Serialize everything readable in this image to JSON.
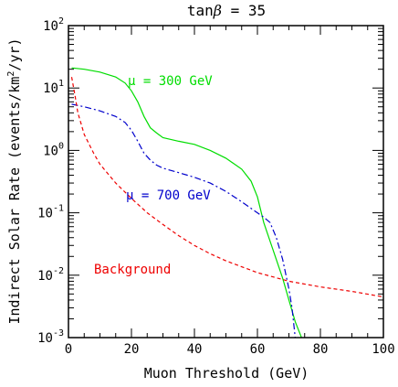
{
  "chart_data": {
    "type": "line",
    "title": {
      "main": "tan",
      "symbol": "β",
      "rest": " = 35"
    },
    "xlabel": "Muon Threshold (GeV)",
    "ylabel": {
      "prefix": "Indirect Solar Rate (events/km",
      "sup": "2",
      "suffix": "/yr)"
    },
    "xlim": [
      0,
      100
    ],
    "ylim": [
      0.001,
      100
    ],
    "yscale": "log",
    "grid": false,
    "xticks": [
      "0",
      "20",
      "40",
      "60",
      "80",
      "100"
    ],
    "yticks": [
      {
        "base": "10",
        "exp": "-3"
      },
      {
        "base": "10",
        "exp": "-2"
      },
      {
        "base": "10",
        "exp": "-1"
      },
      {
        "base": "10",
        "exp": "0"
      },
      {
        "base": "10",
        "exp": "1"
      },
      {
        "base": "10",
        "exp": "2"
      }
    ],
    "series": [
      {
        "name": "μ = 300 GeV",
        "color": "#00dd00",
        "style": "solid",
        "x": [
          1,
          5,
          10,
          15,
          18,
          20,
          22,
          24,
          26,
          28,
          30,
          35,
          40,
          45,
          50,
          55,
          58,
          60,
          62,
          65,
          68,
          70,
          72,
          74
        ],
        "y": [
          21,
          20,
          18,
          15,
          12,
          9,
          6,
          3.5,
          2.3,
          1.9,
          1.6,
          1.4,
          1.25,
          1.0,
          0.75,
          0.5,
          0.32,
          0.18,
          0.07,
          0.025,
          0.009,
          0.004,
          0.0018,
          0.001
        ]
      },
      {
        "name": "μ = 700 GeV",
        "color": "#0000cc",
        "style": "dashdot",
        "x": [
          1,
          5,
          10,
          15,
          18,
          20,
          22,
          24,
          26,
          28,
          30,
          35,
          40,
          45,
          50,
          55,
          60,
          62,
          64,
          66,
          68,
          70,
          71,
          72
        ],
        "y": [
          5.5,
          5.0,
          4.3,
          3.5,
          2.8,
          2.1,
          1.4,
          0.9,
          0.7,
          0.58,
          0.52,
          0.44,
          0.37,
          0.3,
          0.22,
          0.15,
          0.1,
          0.085,
          0.07,
          0.04,
          0.018,
          0.006,
          0.003,
          0.001
        ]
      },
      {
        "name": "Background",
        "color": "#ee0000",
        "style": "dashed",
        "x": [
          1,
          2,
          3,
          5,
          8,
          10,
          15,
          20,
          25,
          30,
          35,
          40,
          45,
          50,
          60,
          70,
          80,
          90,
          100
        ],
        "y": [
          15,
          8,
          4,
          1.8,
          0.9,
          0.6,
          0.3,
          0.17,
          0.1,
          0.065,
          0.043,
          0.03,
          0.022,
          0.017,
          0.011,
          0.008,
          0.0065,
          0.0055,
          0.0045
        ]
      }
    ],
    "annotations": [
      {
        "text": "μ = 300 GeV",
        "color": "#00dd00"
      },
      {
        "text": "μ = 700 GeV",
        "color": "#0000cc"
      },
      {
        "text": "Background",
        "color": "#ee0000"
      }
    ]
  }
}
